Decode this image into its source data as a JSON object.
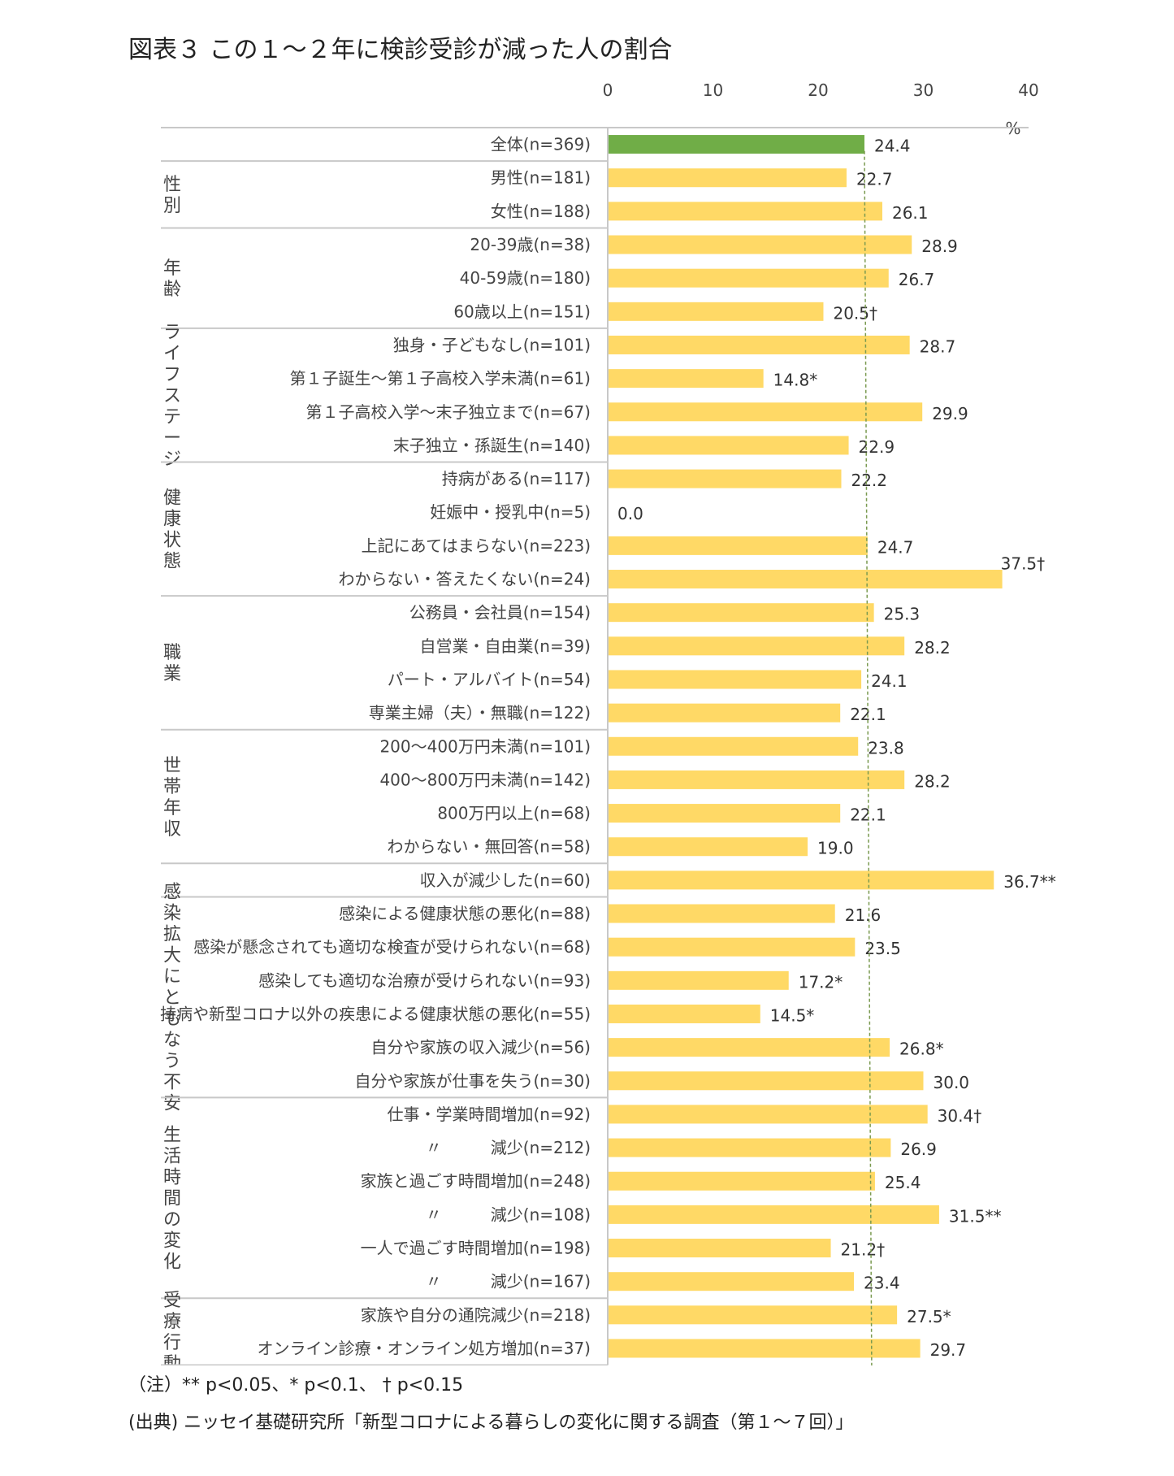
{
  "chart_data": {
    "type": "bar",
    "orientation": "horizontal",
    "title": "図表３ この１～２年に検診受診が減った人の割合",
    "unit": "%",
    "xlim": [
      0,
      40
    ],
    "xticks": [
      "0",
      "10",
      "20",
      "30",
      "40"
    ],
    "reference_value": 24.4,
    "colors": {
      "overall": "#70ad47",
      "group": "#ffd966",
      "reference_line": "#7a9a50"
    },
    "groups": [
      {
        "label": "",
        "rows": [
          {
            "category": "全体(n=369)",
            "value": 24.4,
            "label": "24.4",
            "overall": true
          }
        ]
      },
      {
        "label": "性別",
        "rows": [
          {
            "category": "男性(n=181)",
            "value": 22.7,
            "label": "22.7"
          },
          {
            "category": "女性(n=188)",
            "value": 26.1,
            "label": "26.1"
          }
        ]
      },
      {
        "label": "年齢",
        "rows": [
          {
            "category": "20-39歳(n=38)",
            "value": 28.9,
            "label": "28.9"
          },
          {
            "category": "40-59歳(n=180)",
            "value": 26.7,
            "label": "26.7"
          },
          {
            "category": "60歳以上(n=151)",
            "value": 20.5,
            "label": "20.5†"
          }
        ]
      },
      {
        "label": "ライフステージ",
        "rows": [
          {
            "category": "独身・子どもなし(n=101)",
            "value": 28.7,
            "label": "28.7"
          },
          {
            "category": "第１子誕生～第１子高校入学未満(n=61)",
            "value": 14.8,
            "label": "14.8*"
          },
          {
            "category": "第１子高校入学～末子独立まで(n=67)",
            "value": 29.9,
            "label": "29.9"
          },
          {
            "category": "末子独立・孫誕生(n=140)",
            "value": 22.9,
            "label": "22.9"
          }
        ]
      },
      {
        "label": "健康状態",
        "rows": [
          {
            "category": "持病がある(n=117)",
            "value": 22.2,
            "label": "22.2"
          },
          {
            "category": "妊娠中・授乳中(n=5)",
            "value": 0.0,
            "label": "0.0"
          },
          {
            "category": "上記にあてはまらない(n=223)",
            "value": 24.7,
            "label": "24.7"
          },
          {
            "category": "わからない・答えたくない(n=24)",
            "value": 37.5,
            "label": "37.5†"
          }
        ]
      },
      {
        "label": "職業",
        "rows": [
          {
            "category": "公務員・会社員(n=154)",
            "value": 25.3,
            "label": "25.3"
          },
          {
            "category": "自営業・自由業(n=39)",
            "value": 28.2,
            "label": "28.2"
          },
          {
            "category": "パート・アルバイト(n=54)",
            "value": 24.1,
            "label": "24.1"
          },
          {
            "category": "専業主婦（夫）・無職(n=122)",
            "value": 22.1,
            "label": "22.1"
          }
        ]
      },
      {
        "label": "世帯年収",
        "rows": [
          {
            "category": "200～400万円未満(n=101)",
            "value": 23.8,
            "label": "23.8"
          },
          {
            "category": "400～800万円未満(n=142)",
            "value": 28.2,
            "label": "28.2"
          },
          {
            "category": "800万円以上(n=68)",
            "value": 22.1,
            "label": "22.1"
          },
          {
            "category": "わからない・無回答(n=58)",
            "value": 19.0,
            "label": "19.0"
          }
        ]
      },
      {
        "label": "",
        "rows": [
          {
            "category": "収入が減少した(n=60)",
            "value": 36.7,
            "label": "36.7**"
          }
        ]
      },
      {
        "label": "感染拡大にともなう不安",
        "rows": [
          {
            "category": "感染による健康状態の悪化(n=88)",
            "value": 21.6,
            "label": "21.6"
          },
          {
            "category": "感染が懸念されても適切な検査が受けられない(n=68)",
            "value": 23.5,
            "label": "23.5"
          },
          {
            "category": "感染しても適切な治療が受けられない(n=93)",
            "value": 17.2,
            "label": "17.2*"
          },
          {
            "category": "持病や新型コロナ以外の疾患による健康状態の悪化(n=55)",
            "value": 14.5,
            "label": "14.5*"
          },
          {
            "category": "自分や家族の収入減少(n=56)",
            "value": 26.8,
            "label": "26.8*"
          },
          {
            "category": "自分や家族が仕事を失う(n=30)",
            "value": 30.0,
            "label": "30.0"
          }
        ]
      },
      {
        "label": "生活時間の変化",
        "rows": [
          {
            "category": "仕事・学業時間増加(n=92)",
            "value": 30.4,
            "label": "30.4†"
          },
          {
            "category": "〃　　　減少(n=212)",
            "value": 26.9,
            "label": "26.9"
          },
          {
            "category": "家族と過ごす時間増加(n=248)",
            "value": 25.4,
            "label": "25.4"
          },
          {
            "category": "〃　　　減少(n=108)",
            "value": 31.5,
            "label": "31.5**"
          },
          {
            "category": "一人で過ごす時間増加(n=198)",
            "value": 21.2,
            "label": "21.2†"
          },
          {
            "category": "〃　　　減少(n=167)",
            "value": 23.4,
            "label": "23.4"
          }
        ]
      },
      {
        "label": "受療行動",
        "rows": [
          {
            "category": "家族や自分の通院減少(n=218)",
            "value": 27.5,
            "label": "27.5*"
          },
          {
            "category": "オンライン診療・オンライン処方増加(n=37)",
            "value": 29.7,
            "label": "29.7"
          }
        ]
      }
    ]
  },
  "notes": {
    "significance": "（注）** p<0.05、* p<0.1、 † p<0.15",
    "source": "(出典) ニッセイ基礎研究所「新型コロナによる暮らしの変化に関する調査（第１～７回）」"
  }
}
